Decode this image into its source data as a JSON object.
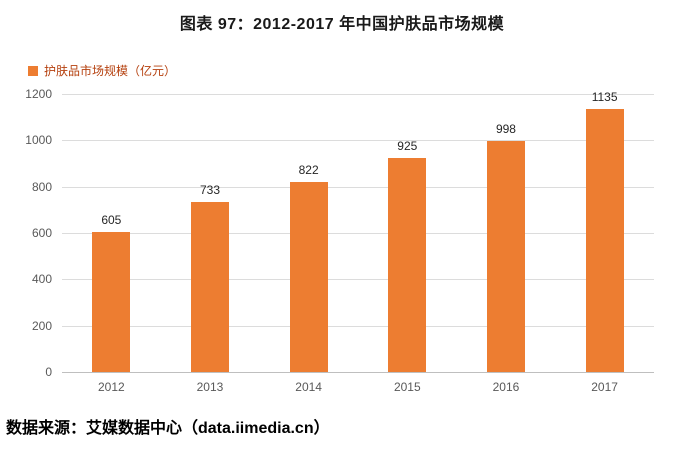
{
  "title": "图表 97：2012-2017 年中国护肤品市场规模",
  "legend": {
    "label": "护肤品市场规模（亿元）",
    "swatch_color": "#ED7D31",
    "swatch_icon": "square-swatch"
  },
  "source": "数据来源：艾媒数据中心（data.iimedia.cn）",
  "colors": {
    "bar": "#ED7D31",
    "gridline": "#dcdcdc",
    "axis_text": "#595959",
    "value_label": "#262626"
  },
  "chart_data": {
    "type": "bar",
    "title": "图表 97：2012-2017 年中国护肤品市场规模",
    "series_name": "护肤品市场规模（亿元）",
    "categories": [
      "2012",
      "2013",
      "2014",
      "2015",
      "2016",
      "2017"
    ],
    "values": [
      605,
      733,
      822,
      925,
      998,
      1135
    ],
    "ylabel": "",
    "xlabel": "",
    "ylim": [
      0,
      1200
    ],
    "yticks": [
      0,
      200,
      400,
      600,
      800,
      1000,
      1200
    ],
    "grid": true,
    "legend_position": "top-left",
    "bar_color": "#ED7D31"
  }
}
